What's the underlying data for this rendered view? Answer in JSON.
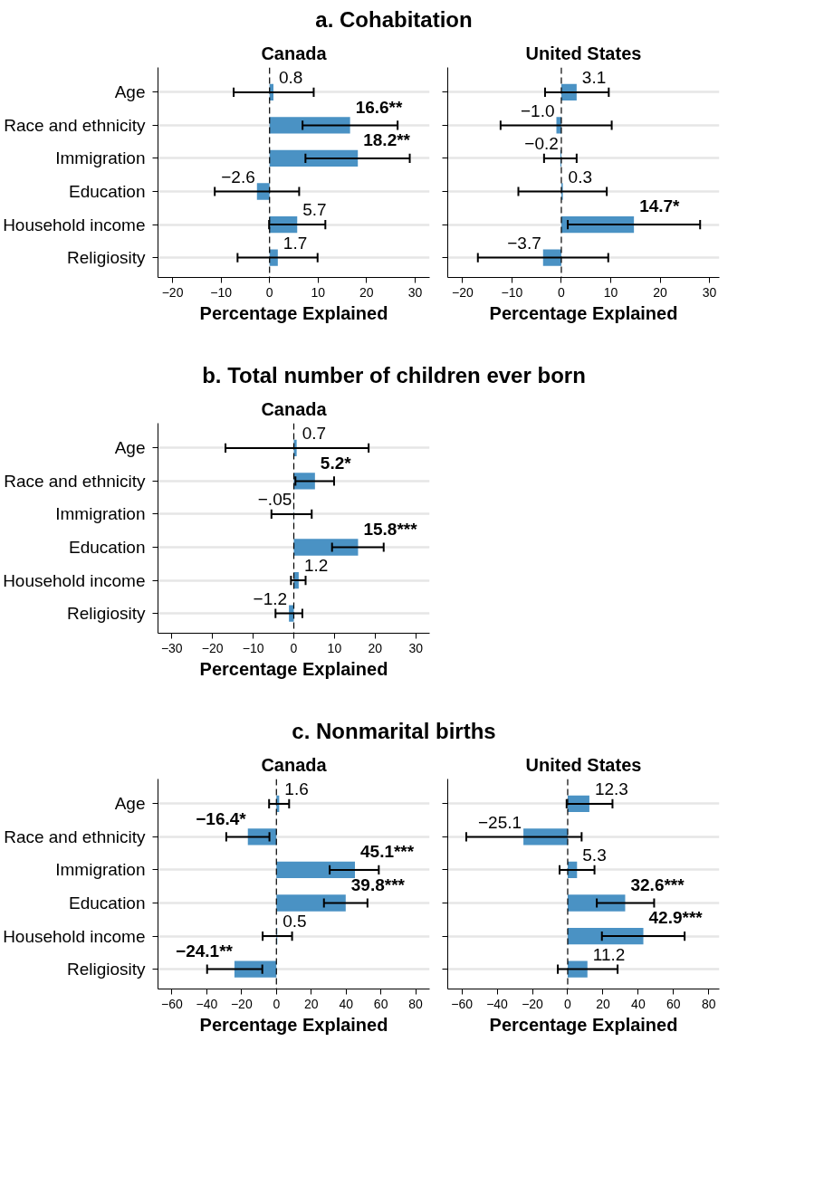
{
  "chart_data": [
    {
      "type": "bar",
      "orientation": "horizontal",
      "title": "a. Cohabitation",
      "subtitle": "Canada",
      "xlabel": "Percentage Explained",
      "categories": [
        "Age",
        "Race and ethnicity",
        "Immigration",
        "Education",
        "Household income",
        "Religiosity"
      ],
      "values": [
        0.8,
        16.6,
        18.2,
        -2.6,
        5.7,
        1.7
      ],
      "errors": [
        [
          -7.4,
          9.1
        ],
        [
          6.8,
          26.4
        ],
        [
          7.4,
          28.9
        ],
        [
          -11.3,
          6.1
        ],
        [
          -0.1,
          11.5
        ],
        [
          -6.6,
          9.9
        ]
      ],
      "value_labels": [
        "0.8",
        "16.6**",
        "18.2**",
        "−2.6",
        "5.7",
        "1.7"
      ],
      "color": "#4a92c4",
      "xlim": [
        -23,
        33
      ],
      "xticks": [
        {
          "value": -20,
          "label": "−20"
        },
        {
          "value": -10,
          "label": "−10"
        },
        0,
        10,
        20,
        30
      ],
      "grid": "y",
      "ref_lines": [
        {
          "axis": "x",
          "value": 0,
          "label": null,
          "line_style": "dashed",
          "color": "#000000"
        }
      ]
    },
    {
      "type": "bar",
      "orientation": "horizontal",
      "subtitle": "United States",
      "xlabel": "Percentage Explained",
      "categories": [
        null,
        null,
        null,
        null,
        null,
        null
      ],
      "values": [
        3.1,
        -1.0,
        -0.2,
        0.3,
        14.7,
        -3.7
      ],
      "errors": [
        [
          -3.3,
          9.6
        ],
        [
          -12.3,
          10.2
        ],
        [
          -3.5,
          3.1
        ],
        [
          -8.7,
          9.2
        ],
        [
          1.3,
          28.1
        ],
        [
          -16.9,
          9.5
        ]
      ],
      "value_labels": [
        "3.1",
        "−1.0",
        "−0.2",
        "0.3",
        "14.7*",
        "−3.7"
      ],
      "color": "#4a92c4",
      "xlim": [
        -23,
        32
      ],
      "xticks": [
        {
          "value": -20,
          "label": "−20"
        },
        {
          "value": -10,
          "label": "−10"
        },
        0,
        10,
        20,
        30
      ],
      "grid": "y",
      "ref_lines": [
        {
          "axis": "x",
          "value": 0,
          "label": null,
          "line_style": "dashed",
          "color": "#000000"
        }
      ]
    },
    {
      "type": "bar",
      "orientation": "horizontal",
      "title": "b. Total number of children ever born",
      "subtitle": "Canada",
      "xlabel": "Percentage Explained",
      "categories": [
        "Age",
        "Race and ethnicity",
        "Immigration",
        "Education",
        "Household income",
        "Religiosity"
      ],
      "values": [
        0.7,
        5.2,
        -0.05,
        15.8,
        1.2,
        -1.2
      ],
      "errors": [
        [
          -16.8,
          18.4
        ],
        [
          0.4,
          9.9
        ],
        [
          -5.5,
          4.4
        ],
        [
          9.4,
          22.1
        ],
        [
          -0.7,
          2.9
        ],
        [
          -4.5,
          2.1
        ]
      ],
      "value_labels": [
        "0.7",
        "5.2*",
        "−.05",
        "15.8***",
        "1.2",
        "−1.2"
      ],
      "color": "#4a92c4",
      "xlim": [
        -33.4,
        33.4
      ],
      "xticks": [
        {
          "value": -30,
          "label": "−30"
        },
        {
          "value": -20,
          "label": "−20"
        },
        {
          "value": -10,
          "label": "−10"
        },
        0,
        10,
        20,
        30
      ],
      "grid": "y",
      "ref_lines": [
        {
          "axis": "x",
          "value": 0,
          "label": null,
          "line_style": "dashed",
          "color": "#000000"
        }
      ]
    },
    {
      "type": "bar",
      "orientation": "horizontal",
      "title": "c. Nonmarital births",
      "subtitle": "Canada",
      "xlabel": "Percentage Explained",
      "categories": [
        "Age",
        "Race and ethnicity",
        "Immigration",
        "Education",
        "Household income",
        "Religiosity"
      ],
      "values": [
        1.6,
        -16.4,
        45.1,
        39.8,
        0.5,
        -24.1
      ],
      "errors": [
        [
          -4.2,
          7.3
        ],
        [
          -28.8,
          -4.0
        ],
        [
          30.6,
          58.8
        ],
        [
          27.3,
          52.3
        ],
        [
          -7.9,
          9.0
        ],
        [
          -39.8,
          -8.1
        ]
      ],
      "value_labels": [
        "1.6",
        "−16.4*",
        "45.1***",
        "39.8***",
        "0.5",
        "−24.1**"
      ],
      "color": "#4a92c4",
      "xlim": [
        -68,
        88
      ],
      "xticks": [
        {
          "value": -60,
          "label": "−60"
        },
        {
          "value": -40,
          "label": "−40"
        },
        {
          "value": -20,
          "label": "−20"
        },
        0,
        20,
        40,
        60,
        80
      ],
      "grid": "y",
      "ref_lines": [
        {
          "axis": "x",
          "value": 0,
          "label": null,
          "line_style": "dashed",
          "color": "#000000"
        }
      ]
    },
    {
      "type": "bar",
      "orientation": "horizontal",
      "subtitle": "United States",
      "xlabel": "Percentage Explained",
      "categories": [
        null,
        null,
        null,
        null,
        null,
        null
      ],
      "values": [
        12.3,
        -25.1,
        5.3,
        32.6,
        42.9,
        11.2
      ],
      "errors": [
        [
          -0.6,
          25.4
        ],
        [
          -57.5,
          7.9
        ],
        [
          -4.6,
          15.2
        ],
        [
          16.5,
          49.0
        ],
        [
          19.4,
          66.3
        ],
        [
          -5.6,
          28.3
        ]
      ],
      "value_labels": [
        "12.3",
        "−25.1",
        "5.3",
        "32.6***",
        "42.9***",
        "11.2"
      ],
      "color": "#4a92c4",
      "xlim": [
        -68,
        86
      ],
      "xticks": [
        {
          "value": -60,
          "label": "−60"
        },
        {
          "value": -40,
          "label": "−40"
        },
        {
          "value": -20,
          "label": "−20"
        },
        0,
        20,
        40,
        60,
        80
      ],
      "grid": "y",
      "ref_lines": [
        {
          "axis": "x",
          "value": 0,
          "label": null,
          "line_style": "dashed",
          "color": "#000000"
        }
      ]
    }
  ]
}
